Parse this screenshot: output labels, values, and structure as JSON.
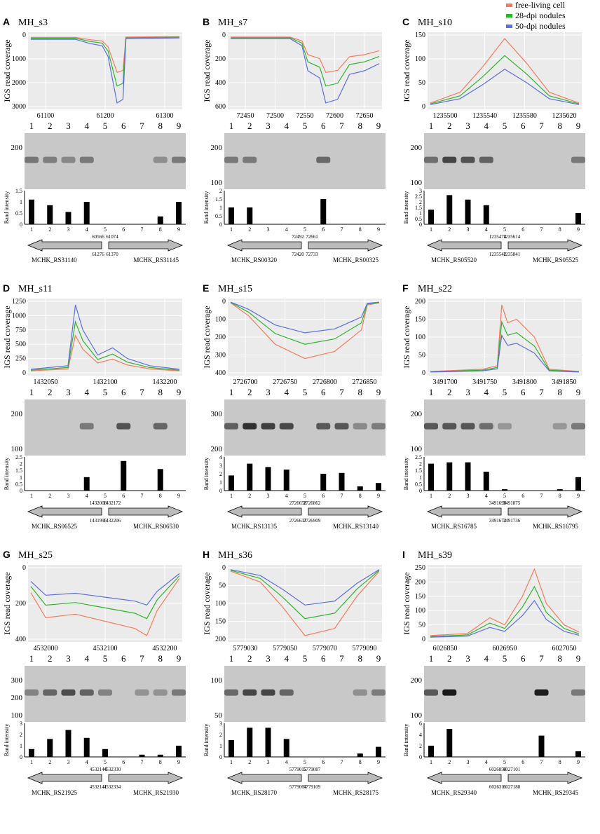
{
  "legend": [
    {
      "label": "free-living cell",
      "color": "#f47c5c"
    },
    {
      "label": "28-dpi nodules",
      "color": "#2db52d"
    },
    {
      "label": "50-dpi nodules",
      "color": "#5a6fe0"
    }
  ],
  "coverage_ylabel": "IGS read coverage",
  "band_ylabel": "Band intensity",
  "lanes": [
    "1",
    "2",
    "3",
    "4",
    "5",
    "6",
    "7",
    "8",
    "9"
  ],
  "panels": [
    {
      "letter": "A",
      "title": "MH_s3",
      "coverage": {
        "inverted": true,
        "yticks": [
          "0",
          "1000",
          "2000",
          "3000"
        ],
        "xticks": [
          "61100",
          "61200",
          "61300"
        ]
      },
      "gel_markers": [
        "200"
      ],
      "band_intensity": {
        "yticks": [
          "0",
          "0.5",
          "1",
          "1.5"
        ],
        "values": [
          1.1,
          0.85,
          0.55,
          1.0,
          0,
          0,
          0,
          0.35,
          1.0
        ]
      },
      "genes": {
        "left": "MCHK_RS31140",
        "right": "MCHK_RS31145",
        "coords": [
          "60566",
          "61074",
          "61276",
          "61370"
        ]
      }
    },
    {
      "letter": "B",
      "title": "MH_s7",
      "coverage": {
        "inverted": true,
        "yticks": [
          "0",
          "200",
          "400",
          "600"
        ],
        "xticks": [
          "72450",
          "72500",
          "72550",
          "72600",
          "72650"
        ]
      },
      "gel_markers": [
        "200",
        "100"
      ],
      "band_intensity": {
        "yticks": [
          "0",
          "0.5",
          "1",
          "1.5",
          "2"
        ],
        "values": [
          1.0,
          1.0,
          0,
          0,
          0,
          1.5,
          0,
          0,
          0
        ]
      },
      "genes": {
        "left": "MCHK_RS00320",
        "right": "MCHK_RS00325",
        "coords": [
          "72492",
          "72661",
          "72420",
          "72733"
        ]
      }
    },
    {
      "letter": "C",
      "title": "MH_s10",
      "coverage": {
        "inverted": false,
        "yticks": [
          "0",
          "50",
          "100",
          "150"
        ],
        "xticks": [
          "1235500",
          "1235540",
          "1235580",
          "1235620"
        ]
      },
      "gel_markers": [
        "200",
        "100"
      ],
      "band_intensity": {
        "yticks": [
          "0",
          "0.5",
          "1",
          "1.5",
          "2",
          "2.5",
          "3"
        ],
        "values": [
          1.3,
          2.6,
          2.2,
          1.7,
          0,
          0,
          0,
          0,
          1.0
        ]
      },
      "genes": {
        "left": "MCHK_RS05520",
        "right": "MCHK_RS05525",
        "coords": [
          "1235474",
          "1235614",
          "1235542",
          "1235841"
        ]
      }
    },
    {
      "letter": "D",
      "title": "MH_s11",
      "coverage": {
        "inverted": false,
        "yticks": [
          "0",
          "250",
          "500",
          "750",
          "1000",
          "1250"
        ],
        "xticks": [
          "1432050",
          "1432100",
          "1432200"
        ]
      },
      "gel_markers": [
        "200",
        "100"
      ],
      "band_intensity": {
        "yticks": [
          "0",
          "0.5",
          "1",
          "1.5",
          "2",
          "2.5"
        ],
        "values": [
          0,
          0,
          0,
          1.0,
          0,
          2.2,
          0,
          1.6,
          0
        ]
      },
      "genes": {
        "left": "MCHK_RS06525",
        "right": "MCHK_RS06530",
        "coords": [
          "1432008",
          "1432172",
          "1431995",
          "1432206"
        ]
      }
    },
    {
      "letter": "E",
      "title": "MH_s15",
      "coverage": {
        "inverted": true,
        "yticks": [
          "0",
          "100",
          "200",
          "300",
          "400"
        ],
        "xticks": [
          "2726700",
          "2726750",
          "2726800",
          "2726850"
        ]
      },
      "gel_markers": [
        "300",
        "200"
      ],
      "band_intensity": {
        "yticks": [
          "0",
          "1",
          "2",
          "3",
          "4"
        ],
        "values": [
          1.8,
          3.2,
          2.8,
          2.5,
          0,
          2.0,
          2.1,
          0.5,
          0.9
        ]
      },
      "genes": {
        "left": "MCHK_RS13135",
        "right": "MCHK_RS13140",
        "coords": [
          "2726658",
          "2726862",
          "2726637",
          "2726909"
        ]
      }
    },
    {
      "letter": "F",
      "title": "MH_s22",
      "coverage": {
        "inverted": false,
        "yticks": [
          "0",
          "50",
          "100",
          "150",
          "200"
        ],
        "xticks": [
          "3491700",
          "3491750",
          "3491800",
          "3491850"
        ]
      },
      "gel_markers": [
        "200",
        "100"
      ],
      "band_intensity": {
        "yticks": [
          "0",
          "0.5",
          "1",
          "1.5",
          "2",
          "2.5"
        ],
        "values": [
          2.0,
          2.1,
          2.1,
          1.4,
          0.1,
          0,
          0,
          0.1,
          1.0
        ]
      },
      "genes": {
        "left": "MCHK_RS16785",
        "right": "MCHK_RS16795",
        "coords": [
          "3491690",
          "3491875",
          "3491672",
          "3491736"
        ]
      }
    },
    {
      "letter": "G",
      "title": "MH_s25",
      "coverage": {
        "inverted": true,
        "yticks": [
          "0",
          "200",
          "400"
        ],
        "xticks": [
          "4532000",
          "4532100",
          "4532200"
        ]
      },
      "gel_markers": [
        "300",
        "200",
        "100"
      ],
      "band_intensity": {
        "yticks": [
          "0",
          "1",
          "2",
          "3"
        ],
        "values": [
          0.7,
          1.6,
          2.4,
          1.7,
          0.7,
          0,
          0.2,
          0.2,
          1.0
        ]
      },
      "genes": {
        "left": "MCHK_RS21925",
        "right": "MCHK_RS21930",
        "coords": [
          "4532144",
          "4532330",
          "4532141",
          "4532334"
        ]
      }
    },
    {
      "letter": "H",
      "title": "MH_s36",
      "coverage": {
        "inverted": true,
        "yticks": [
          "0",
          "50",
          "100",
          "150",
          "200"
        ],
        "xticks": [
          "5779030",
          "5779050",
          "5779070",
          "5779090"
        ]
      },
      "gel_markers": [
        "100",
        "50"
      ],
      "band_intensity": {
        "yticks": [
          "0",
          "1",
          "2",
          "3"
        ],
        "values": [
          1.5,
          2.6,
          2.6,
          1.6,
          0,
          0,
          0,
          0.3,
          0.9
        ]
      },
      "genes": {
        "left": "MCHK_RS28170",
        "right": "MCHK_RS28175",
        "coords": [
          "5779015",
          "5779087",
          "5779064",
          "5779109"
        ]
      }
    },
    {
      "letter": "I",
      "title": "MH_s39",
      "coverage": {
        "inverted": false,
        "yticks": [
          "0",
          "50",
          "100",
          "150",
          "200",
          "250"
        ],
        "xticks": [
          "6026850",
          "6026950",
          "6027050"
        ]
      },
      "gel_markers": [
        "200",
        "100"
      ],
      "band_intensity": {
        "yticks": [
          "0",
          "2",
          "4",
          "6"
        ],
        "values": [
          2.0,
          5.0,
          0,
          0,
          0,
          0,
          3.8,
          0,
          1.0
        ]
      },
      "genes": {
        "left": "MCHK_RS29340",
        "right": "MCHK_RS29345",
        "coords": [
          "6026850",
          "6027101",
          "6026311",
          "6027188"
        ]
      }
    }
  ]
}
